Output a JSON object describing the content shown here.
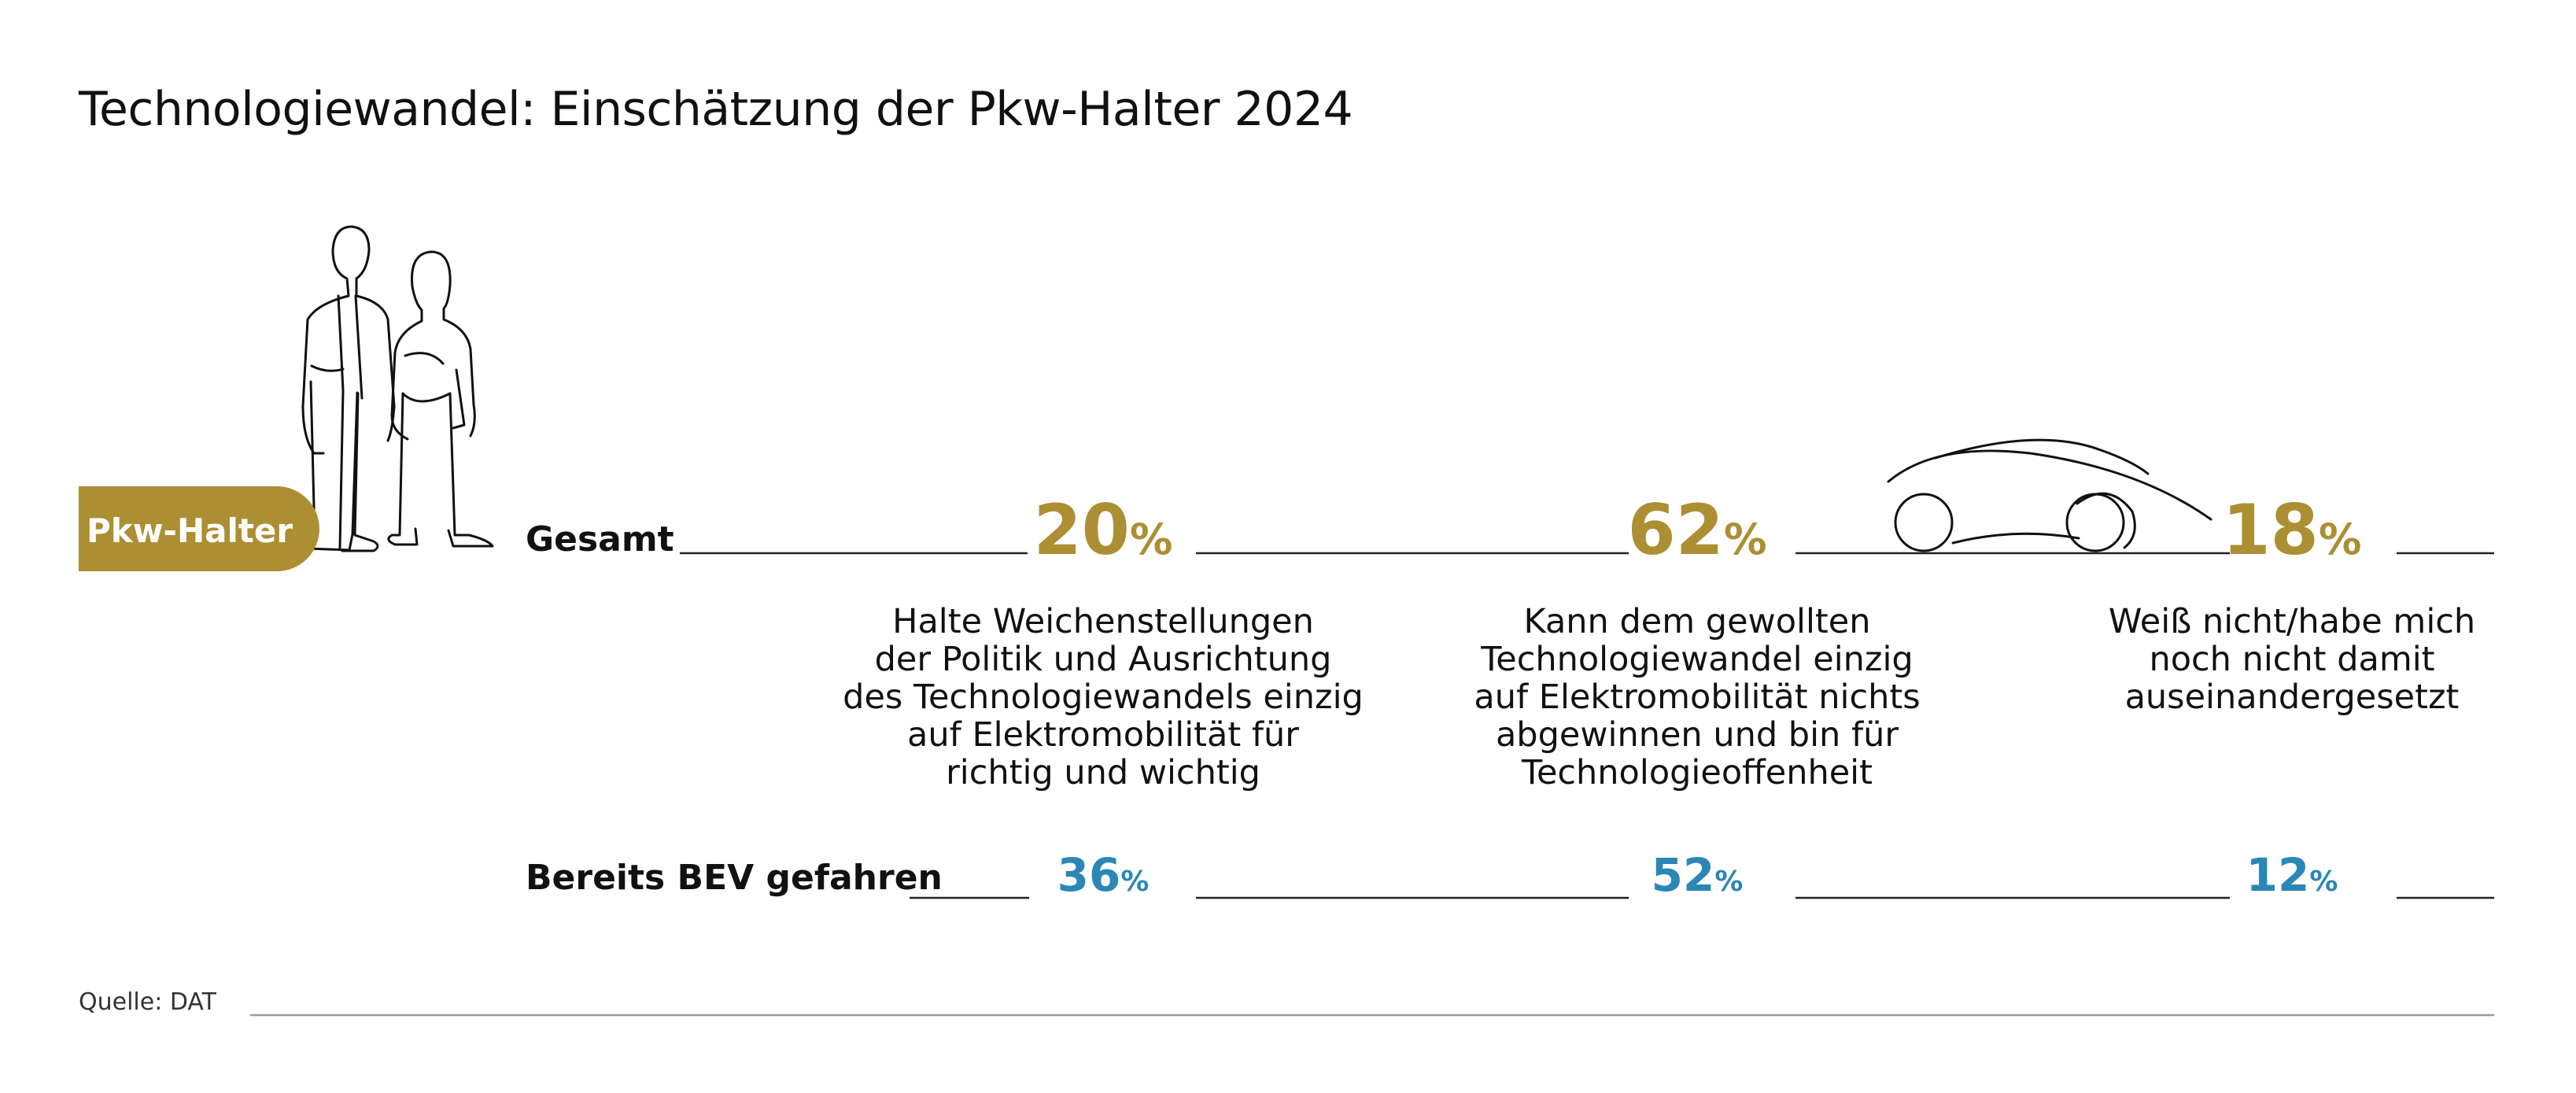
{
  "title": "Technologiewandel: Einschätzung der Pkw-Halter 2024",
  "badge": "Pkw-Halter",
  "source": "Quelle: DAT",
  "colors": {
    "gold": "#ad8f33",
    "blue": "#2a87b6",
    "line": "#222222"
  },
  "chart_data": {
    "type": "table",
    "title": "Technologiewandel: Einschätzung der Pkw-Halter 2024",
    "categories": [
      "Halte Weichenstellungen\nder Politik und Ausrichtung\ndes Technologiewandels einzig\nauf Elektromobilität für\nrichtig und wichtig",
      "Kann dem gewollten\nTechnologiewandel einzig\nauf Elektromobilität nichts\nabgewinnen und bin für\nTechnologieoffenheit",
      "Weiß nicht/habe mich\nnoch nicht damit\nauseinandergesetzt"
    ],
    "series": [
      {
        "name": "Gesamt",
        "values": [
          20,
          62,
          18
        ],
        "color": "#ad8f33"
      },
      {
        "name": "Bereits BEV gefahren",
        "values": [
          36,
          52,
          12
        ],
        "color": "#2a87b6"
      }
    ],
    "unit": "%"
  }
}
